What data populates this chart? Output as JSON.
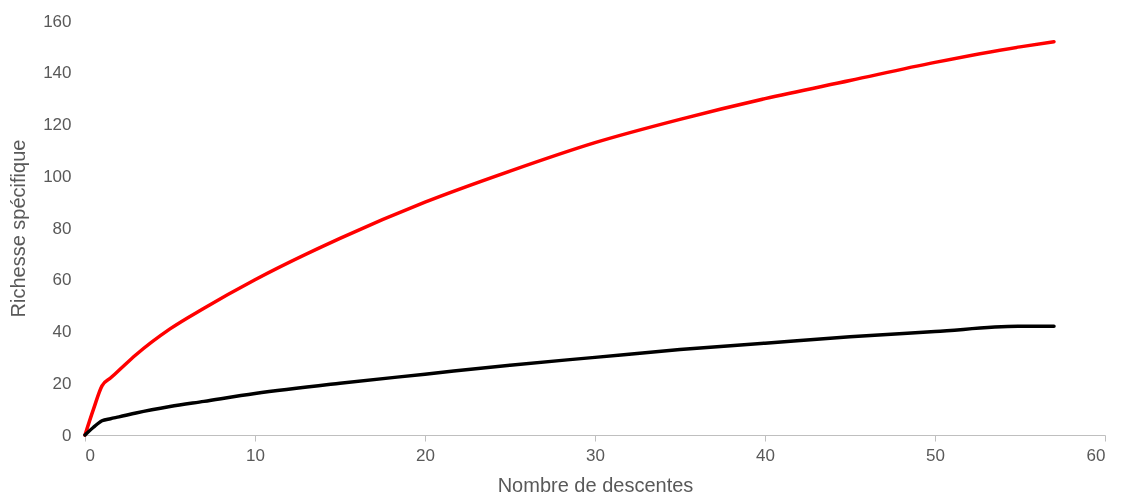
{
  "chart_data": {
    "type": "line",
    "xlabel": "Nombre de descentes",
    "ylabel": "Richesse spécifique",
    "xlim": [
      0,
      60
    ],
    "xticks": [
      0,
      10,
      20,
      30,
      40,
      50,
      60
    ],
    "ylim": [
      0,
      160
    ],
    "yticks": [
      0,
      20,
      40,
      60,
      80,
      100,
      120,
      140,
      160
    ],
    "grid": false,
    "marker": "none",
    "line_style": "solid",
    "series": [
      {
        "color": "#ff0000",
        "x": [
          0,
          0.5,
          1,
          1.5,
          2,
          3,
          5,
          7,
          10,
          15,
          20,
          25,
          30,
          35,
          40,
          45,
          50,
          55,
          57
        ],
        "values": [
          0,
          10,
          19,
          22,
          25,
          31,
          41,
          49,
          60,
          76,
          90,
          102,
          113,
          122,
          130,
          137,
          144,
          150,
          152
        ]
      },
      {
        "color": "#000000",
        "x": [
          0,
          0.5,
          1,
          1.5,
          2,
          3,
          5,
          7,
          10,
          15,
          20,
          25,
          30,
          35,
          40,
          45,
          50,
          55,
          57
        ],
        "values": [
          0,
          3,
          5.5,
          6.3,
          7,
          8.5,
          11,
          13,
          16,
          20,
          23.5,
          27,
          30,
          33,
          35.5,
          38,
          40,
          42,
          42
        ]
      }
    ]
  }
}
